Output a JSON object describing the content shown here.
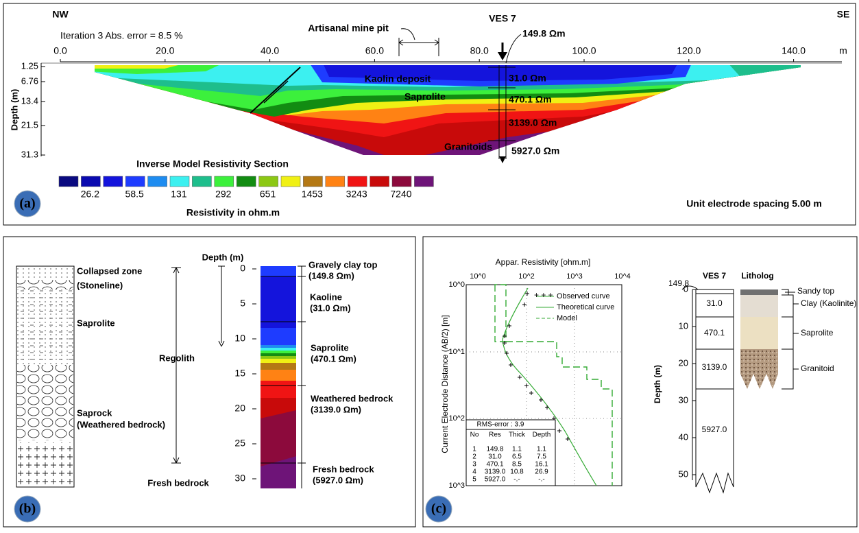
{
  "panel_a": {
    "label": "(a)",
    "left_direction": "NW",
    "right_direction": "SE",
    "iteration_text": "Iteration 3 Abs. error = 8.5 %",
    "distance_ticks": [
      "0.0",
      "20.0",
      "40.0",
      "60.0",
      "80.0",
      "100.0",
      "120.0",
      "140.0"
    ],
    "distance_unit": "m",
    "depth_axis_title": "Depth (m)",
    "depth_ticks": [
      "1.25",
      "6.76",
      "13.4",
      "21.5",
      "31.3"
    ],
    "pit_label": "Artisanal mine pit",
    "ves_label": "VES 7",
    "top_resistivity": "149.8 Ωm",
    "zones": [
      "Kaolin deposit",
      "Saprolite",
      "Granitoids"
    ],
    "layer_resistivities": [
      "31.0 Ωm",
      "470.1 Ωm",
      "3139.0 Ωm",
      "5927.0 Ωm"
    ],
    "legend_title": "Inverse Model Resistivity Section",
    "legend_colors": [
      "#0a0a80",
      "#0a0ab0",
      "#1414dc",
      "#1e3cff",
      "#1e8cf0",
      "#3cf0f0",
      "#1ebe8c",
      "#3cf03c",
      "#128c12",
      "#8cc814",
      "#f0f014",
      "#b47814",
      "#ff8214",
      "#f01414",
      "#c80a0a",
      "#8c0a3c",
      "#6e1478"
    ],
    "legend_values": [
      "26.2",
      "58.5",
      "131",
      "292",
      "651",
      "1453",
      "3243",
      "7240"
    ],
    "legend_unit": "Resistivity in ohm.m",
    "spacing_note": "Unit electrode spacing 5.00 m"
  },
  "panel_b": {
    "label": "(b)",
    "column_labels": [
      "Collapsed zone",
      "(Stoneline)",
      "Saprolite",
      "Saprock",
      "(Weathered bedrock)",
      "Fresh bedrock"
    ],
    "regolith_label": "Regolith",
    "depth_axis_title": "Depth (m)",
    "depth_ticks": [
      "0",
      "5",
      "10",
      "15",
      "20",
      "25",
      "30"
    ],
    "layers": [
      {
        "name": "Gravely clay top",
        "resistivity": "(149.8 Ωm)"
      },
      {
        "name": "Kaoline",
        "resistivity": "(31.0 Ωm)"
      },
      {
        "name": "Saprolite",
        "resistivity": "(470.1 Ωm)"
      },
      {
        "name": "Weathered bedrock",
        "resistivity": "(3139.0 Ωm)"
      },
      {
        "name": "Fresh bedrock",
        "resistivity": "(5927.0 Ωm)"
      }
    ]
  },
  "panel_c": {
    "label": "(c)",
    "x_axis_title": "Appar. Resistivity [ohm.m]",
    "x_ticks": [
      "10^0",
      "10^2",
      "10^3",
      "10^4"
    ],
    "y_axis_title": "Current Electrode Distance (AB/2) [m]",
    "y_ticks": [
      "10^0",
      "10^1",
      "10^2",
      "10^3"
    ],
    "legend": [
      "Observed curve",
      "Theoretical curve",
      "Model"
    ],
    "rms": "RMS-error : 3.9",
    "table_header": [
      "No",
      "Res",
      "Thick",
      "Depth"
    ],
    "table_rows": [
      [
        "1",
        "149.8",
        "1.1",
        "1.1"
      ],
      [
        "2",
        "31.0",
        "6.5",
        "7.5"
      ],
      [
        "3",
        "470.1",
        "8.5",
        "16.1"
      ],
      [
        "4",
        "3139.0",
        "10.8",
        "26.9"
      ],
      [
        "5",
        "5927.0",
        "-.-",
        "-.-"
      ]
    ],
    "log": {
      "top_value": "149.8",
      "title": "VES 7",
      "litholog_title": "Litholog",
      "depth_axis_title": "Depth (m)",
      "depth_ticks": [
        "0",
        "10",
        "20",
        "30",
        "40",
        "50"
      ],
      "layer_values": [
        "31.0",
        "470.1",
        "3139.0",
        "5927.0"
      ],
      "units": [
        "Sandy top",
        "Clay (Kaolinite)",
        "Saprolite",
        "Granitoid"
      ]
    }
  }
}
